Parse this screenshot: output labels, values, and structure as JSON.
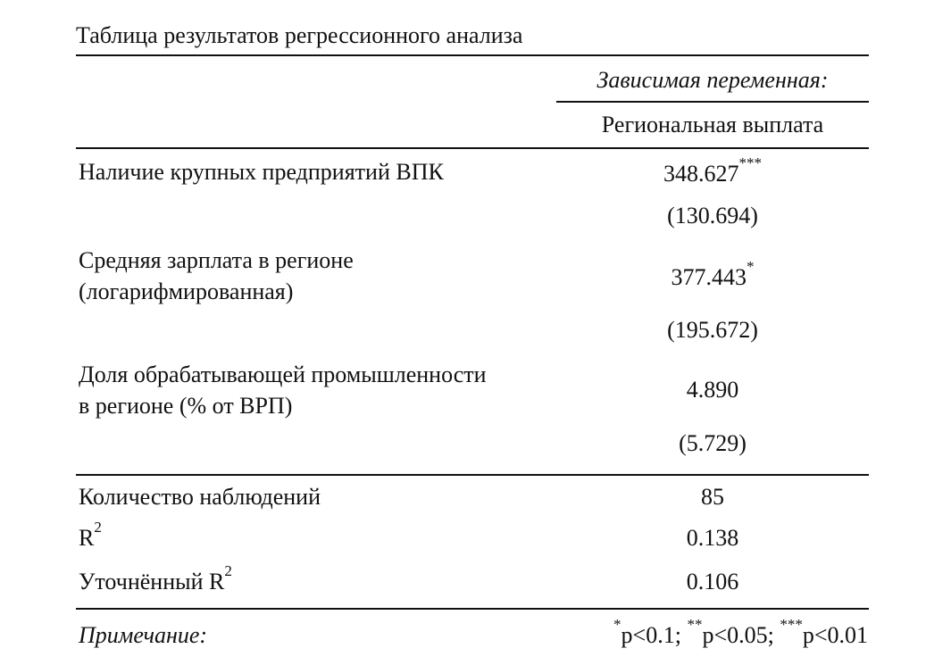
{
  "title": "Таблица результатов регрессионного анализа",
  "header": {
    "dependent_label": "Зависимая переменная:",
    "dependent_name": "Региональная выплата"
  },
  "rows": [
    {
      "label": [
        "Наличие крупных предприятий ВПК"
      ],
      "coef": "348.627",
      "stars": "***",
      "se": "(130.694)"
    },
    {
      "label": [
        "Средняя зарплата в регионе",
        "(логарифмированная)"
      ],
      "coef": "377.443",
      "stars": "*",
      "se": "(195.672)"
    },
    {
      "label": [
        "Доля обрабатывающей промышленности",
        "в регионе (% от ВРП)"
      ],
      "coef": "4.890",
      "stars": "",
      "se": "(5.729)"
    }
  ],
  "stats": [
    {
      "label": "Количество наблюдений",
      "sup": "",
      "value": "85"
    },
    {
      "label": "R",
      "sup": "2",
      "value": "0.138"
    },
    {
      "label": "Уточнённый R",
      "sup": "2",
      "value": "0.106"
    }
  ],
  "note": {
    "label": "Примечание:",
    "items": [
      {
        "stars": "*",
        "text": "p<0.1; "
      },
      {
        "stars": "**",
        "text": "p<0.05; "
      },
      {
        "stars": "***",
        "text": "p<0.01"
      }
    ]
  }
}
